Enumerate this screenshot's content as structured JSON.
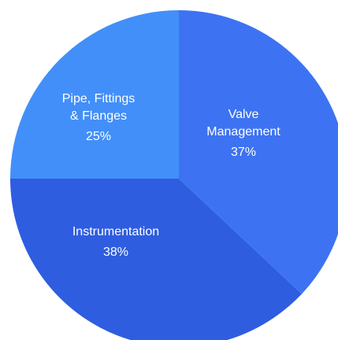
{
  "chart_data": {
    "type": "pie",
    "start_at": "12 o'clock",
    "direction": "clockwise",
    "slices": [
      {
        "label_lines": [
          "Valve",
          "Management"
        ],
        "percent_label": "37%",
        "value": 37,
        "color": "#3d73f2"
      },
      {
        "label_lines": [
          "Instrumentation"
        ],
        "percent_label": "38%",
        "value": 38,
        "color": "#2f5de0"
      },
      {
        "label_lines": [
          "Pipe, Fittings",
          "& Flanges"
        ],
        "percent_label": "25%",
        "value": 25,
        "color": "#428ff9"
      }
    ]
  }
}
